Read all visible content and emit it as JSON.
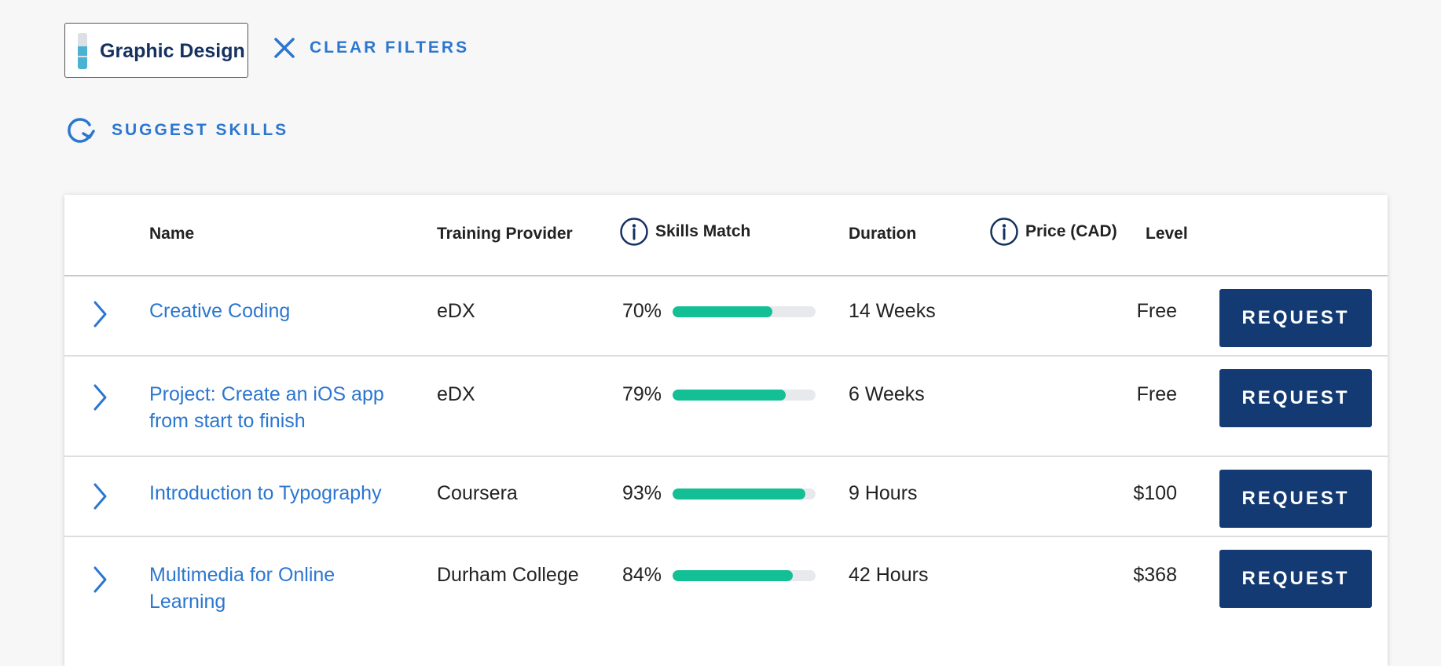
{
  "filters": {
    "chip_label": "Graphic Design",
    "clear_label": "CLEAR FILTERS",
    "suggest_label": "SUGGEST SKILLS"
  },
  "table": {
    "columns": {
      "name": "Name",
      "provider": "Training Provider",
      "skills_match": "Skills Match",
      "duration": "Duration",
      "price": "Price (CAD)",
      "level": "Level"
    },
    "rows": [
      {
        "name": "Creative Coding",
        "provider": "eDX",
        "match_label": "70%",
        "match": 0.7,
        "duration": "14 Weeks",
        "price": "Free",
        "action": "REQUEST"
      },
      {
        "name": "Project: Create an iOS app from start to finish",
        "provider": "eDX",
        "match_label": "79%",
        "match": 0.79,
        "duration": "6 Weeks",
        "price": "Free",
        "action": "REQUEST"
      },
      {
        "name": "Introduction to Typography",
        "provider": "Coursera",
        "match_label": "93%",
        "match": 0.93,
        "duration": "9 Hours",
        "price": "$100",
        "action": "REQUEST"
      },
      {
        "name": "Multimedia for Online Learning",
        "provider": "Durham College",
        "match_label": "84%",
        "match": 0.84,
        "duration": "42 Hours",
        "price": "$368",
        "action": "REQUEST"
      }
    ]
  },
  "colors": {
    "link": "#2b76d0",
    "button": "#133a72",
    "progress_fill": "#13bf95",
    "progress_track": "#e7e9ec",
    "chip_level": "#4ab3d4"
  },
  "icons": {
    "clear": "close-icon",
    "suggest": "refresh-icon",
    "info": "info-icon",
    "expand": "chevron-right-icon",
    "skill_level": "skill-level-icon"
  }
}
